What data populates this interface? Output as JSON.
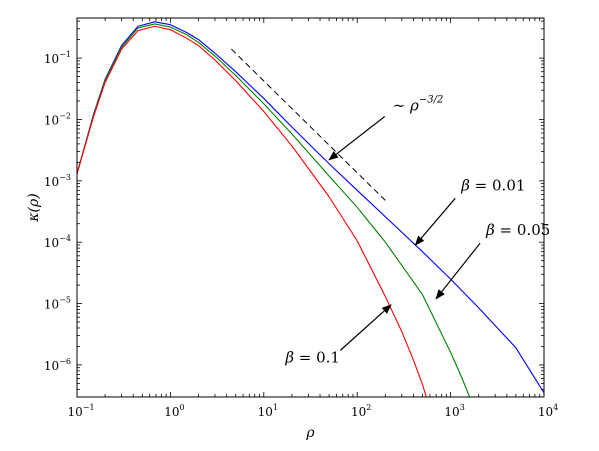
{
  "chart_data": {
    "type": "line",
    "title": "",
    "xlabel": "ρ",
    "ylabel": "κ(ρ)",
    "xscale": "log",
    "yscale": "log",
    "xlim": [
      0.1,
      10000
    ],
    "ylim": [
      3e-07,
      0.45
    ],
    "grid": false,
    "legend": "none",
    "x_ticks": [
      {
        "value": 0.1,
        "base": "10",
        "exp": "−1"
      },
      {
        "value": 1,
        "base": "10",
        "exp": "0"
      },
      {
        "value": 10,
        "base": "10",
        "exp": "1"
      },
      {
        "value": 100,
        "base": "10",
        "exp": "2"
      },
      {
        "value": 1000,
        "base": "10",
        "exp": "3"
      },
      {
        "value": 10000,
        "base": "10",
        "exp": "4"
      }
    ],
    "y_ticks": [
      {
        "value": 1e-06,
        "base": "10",
        "exp": "−6"
      },
      {
        "value": 1e-05,
        "base": "10",
        "exp": "−5"
      },
      {
        "value": 0.0001,
        "base": "10",
        "exp": "−4"
      },
      {
        "value": 0.001,
        "base": "10",
        "exp": "−3"
      },
      {
        "value": 0.01,
        "base": "10",
        "exp": "−2"
      },
      {
        "value": 0.1,
        "base": "10",
        "exp": "−1"
      }
    ],
    "series": [
      {
        "label": "β = 0.01",
        "color": "#0000ff",
        "x": [
          0.1,
          0.15,
          0.2,
          0.3,
          0.45,
          0.68,
          1,
          1.5,
          2,
          3,
          5,
          10,
          20,
          50,
          100,
          200,
          500,
          1000,
          2000,
          5000,
          10000
        ],
        "y": [
          0.0013,
          0.012,
          0.045,
          0.16,
          0.33,
          0.39,
          0.35,
          0.26,
          0.2,
          0.12,
          0.06,
          0.022,
          0.0075,
          0.0019,
          0.0007,
          0.00026,
          7e-05,
          2.5e-05,
          8.5e-06,
          1.9e-06,
          3.5e-07
        ]
      },
      {
        "label": "β = 0.05",
        "color": "#008000",
        "x": [
          0.1,
          0.15,
          0.2,
          0.3,
          0.45,
          0.68,
          1,
          1.5,
          2,
          3,
          5,
          10,
          20,
          50,
          100,
          200,
          500,
          1000,
          1300,
          1600
        ],
        "y": [
          0.0013,
          0.0115,
          0.043,
          0.15,
          0.31,
          0.36,
          0.32,
          0.24,
          0.18,
          0.108,
          0.052,
          0.018,
          0.0058,
          0.0012,
          0.00037,
          0.0001,
          1.4e-05,
          1.6e-06,
          6.5e-07,
          3e-07
        ]
      },
      {
        "label": "β = 0.1",
        "color": "#ff0000",
        "x": [
          0.1,
          0.15,
          0.2,
          0.3,
          0.45,
          0.68,
          1,
          1.5,
          2,
          3,
          5,
          10,
          20,
          50,
          100,
          200,
          300,
          400,
          500,
          550
        ],
        "y": [
          0.0013,
          0.011,
          0.04,
          0.14,
          0.28,
          0.33,
          0.29,
          0.21,
          0.16,
          0.093,
          0.043,
          0.0135,
          0.0037,
          0.00055,
          0.000105,
          1.3e-05,
          3.5e-06,
          1.2e-06,
          4.8e-07,
          3e-07
        ]
      }
    ],
    "reference_line": {
      "label": "~ ρ^(−3/2)",
      "style": "dashed",
      "color": "#000000",
      "x": [
        4.5,
        200
      ],
      "y": [
        0.14,
        0.00048
      ]
    },
    "annotations": [
      {
        "id": "beta001",
        "prefix": "β",
        "text": " = 0.01",
        "label_at": {
          "x": 1300,
          "y": 0.0007
        },
        "arrow_to": {
          "x": 420,
          "y": 9e-05
        }
      },
      {
        "id": "beta005",
        "prefix": "β",
        "text": " = 0.05",
        "label_at": {
          "x": 2400,
          "y": 0.00013
        },
        "arrow_to": {
          "x": 700,
          "y": 1.2e-05
        }
      },
      {
        "id": "beta01",
        "prefix": "β",
        "text": " = 0.1",
        "label_at": {
          "x": 17,
          "y": 1.1e-06
        },
        "arrow_to": {
          "x": 230,
          "y": 9.5e-06
        }
      },
      {
        "id": "powerlaw",
        "prefix": "∼ ",
        "text": "ρ",
        "exp": "−3/2",
        "label_at": {
          "x": 240,
          "y": 0.014
        },
        "arrow_to": {
          "x": 50,
          "y": 0.0022
        }
      }
    ]
  }
}
